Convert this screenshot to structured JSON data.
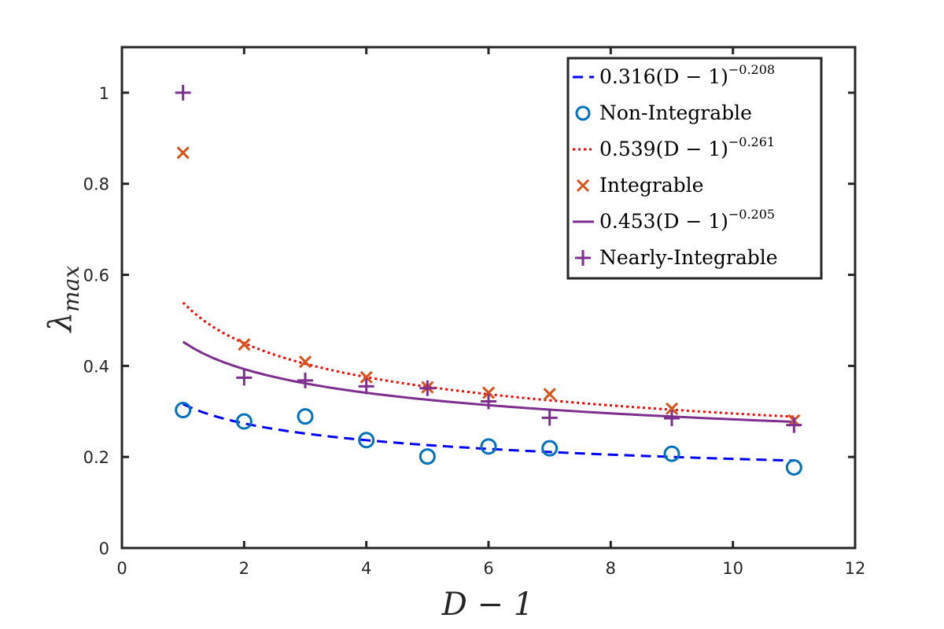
{
  "chart_data": {
    "type": "scatter",
    "title": "",
    "xlabel": "D − 1",
    "ylabel": "λ",
    "ylabel_subscript": "max",
    "xlim": [
      0,
      12
    ],
    "ylim": [
      0,
      1.1
    ],
    "xticks": [
      0,
      2,
      4,
      6,
      8,
      10,
      12
    ],
    "yticks": [
      0,
      0.2,
      0.4,
      0.6,
      0.8,
      1
    ],
    "xtick_labels": [
      "0",
      "2",
      "4",
      "6",
      "8",
      "10",
      "12"
    ],
    "ytick_labels": [
      "0",
      "0.2",
      "0.4",
      "0.6",
      "0.8",
      "1"
    ],
    "legend_position": "top-right",
    "series": [
      {
        "name": "Non-Integrable",
        "marker": "circle",
        "color": "#0072BD",
        "x": [
          1,
          2,
          3,
          4,
          5,
          6,
          7,
          9,
          11
        ],
        "y": [
          0.303,
          0.278,
          0.289,
          0.237,
          0.201,
          0.223,
          0.219,
          0.207,
          0.177
        ],
        "fit": {
          "label": "0.316(D − 1)",
          "coefficient": 0.316,
          "exponent": -0.208,
          "exponent_label": "−0.208",
          "style": "dashed",
          "color": "#0000FF"
        }
      },
      {
        "name": "Integrable",
        "marker": "x",
        "color": "#D95319",
        "x": [
          1,
          2,
          3,
          4,
          5,
          6,
          7,
          9,
          11
        ],
        "y": [
          0.868,
          0.447,
          0.409,
          0.375,
          0.353,
          0.341,
          0.338,
          0.306,
          0.28
        ],
        "fit": {
          "label": "0.539(D − 1)",
          "coefficient": 0.539,
          "exponent": -0.261,
          "exponent_label": "−0.261",
          "style": "dotted",
          "color": "#FF0000"
        }
      },
      {
        "name": "Nearly-Integrable",
        "marker": "plus",
        "color": "#7E2F8E",
        "x": [
          1,
          2,
          3,
          4,
          5,
          6,
          7,
          9,
          11
        ],
        "y": [
          1.0,
          0.374,
          0.368,
          0.355,
          0.351,
          0.322,
          0.286,
          0.285,
          0.27
        ],
        "fit": {
          "label": "0.453(D − 1)",
          "coefficient": 0.453,
          "exponent": -0.205,
          "exponent_label": "−0.205",
          "style": "solid",
          "color": "#7E2F8E"
        }
      }
    ]
  }
}
